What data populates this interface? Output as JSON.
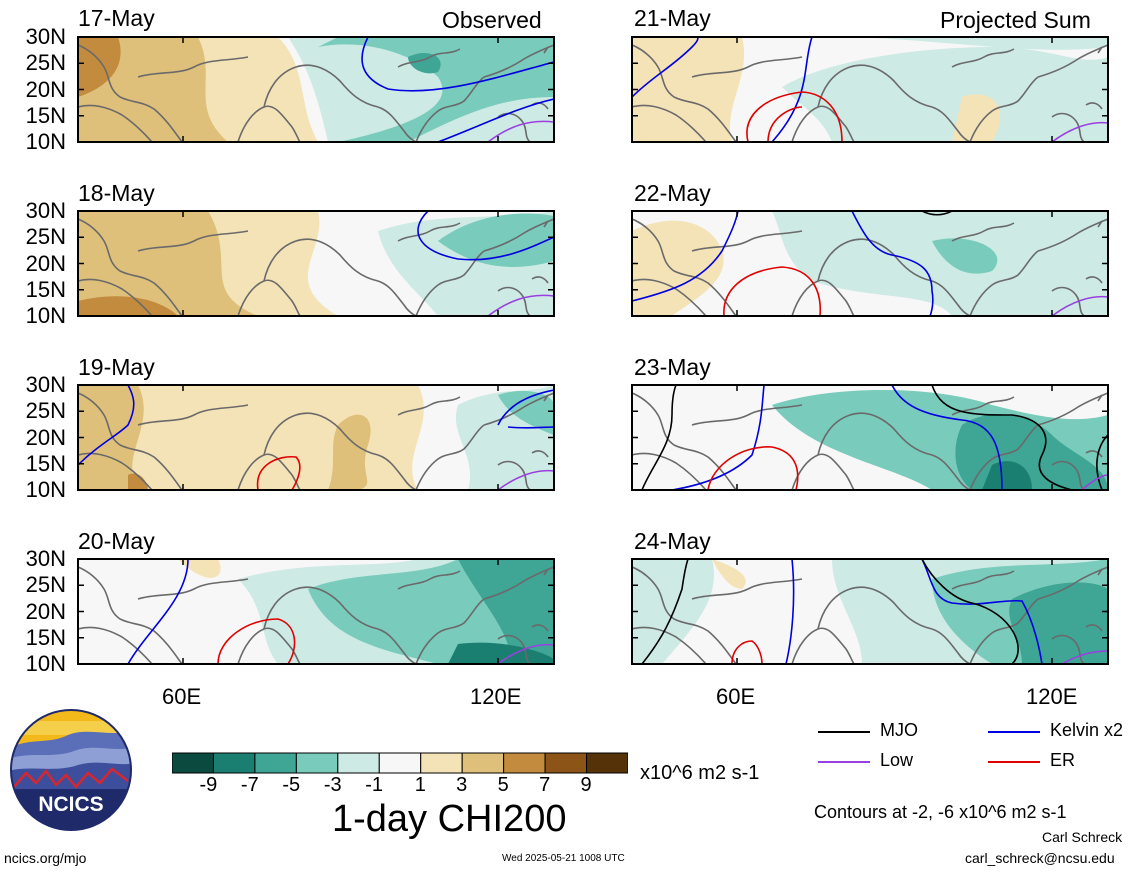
{
  "labels": {
    "observed": "Observed",
    "projected": "Projected Sum",
    "lat_ticks": [
      "30N",
      "25N",
      "20N",
      "15N",
      "10N"
    ],
    "lon_ticks": [
      "60E",
      "120E"
    ]
  },
  "panels_left": [
    {
      "date": "17-May"
    },
    {
      "date": "18-May"
    },
    {
      "date": "19-May"
    },
    {
      "date": "20-May"
    }
  ],
  "panels_right": [
    {
      "date": "21-May"
    },
    {
      "date": "22-May"
    },
    {
      "date": "23-May"
    },
    {
      "date": "24-May"
    }
  ],
  "colorbar": {
    "tick_labels": [
      "-9",
      "-7",
      "-5",
      "-3",
      "-1",
      "1",
      "3",
      "5",
      "7",
      "9"
    ],
    "colors": [
      "#0b4a3f",
      "#1a7f70",
      "#3fa595",
      "#79cbbb",
      "#cdeae4",
      "#f7f7f7",
      "#f5e3b8",
      "#dfc07a",
      "#c38b3e",
      "#8d5418",
      "#553208"
    ],
    "units": "x10^6 m2 s-1",
    "title": "1-day CHI200"
  },
  "legend": {
    "items": [
      {
        "label": "MJO",
        "color": "#000000"
      },
      {
        "label": "Kelvin x2",
        "color": "#0000e0"
      },
      {
        "label": "Low",
        "color": "#9a40e0"
      },
      {
        "label": "ER",
        "color": "#e00000"
      }
    ],
    "contours_note": "Contours at -2, -6 x10^6 m2 s-1"
  },
  "footer": {
    "logo_text": "NCICS",
    "url": "ncics.org/mjo",
    "timestamp": "Wed 2025-05-21 1008 UTC",
    "author": "Carl Schreck",
    "email": "carl_schreck@ncsu.edu"
  }
}
